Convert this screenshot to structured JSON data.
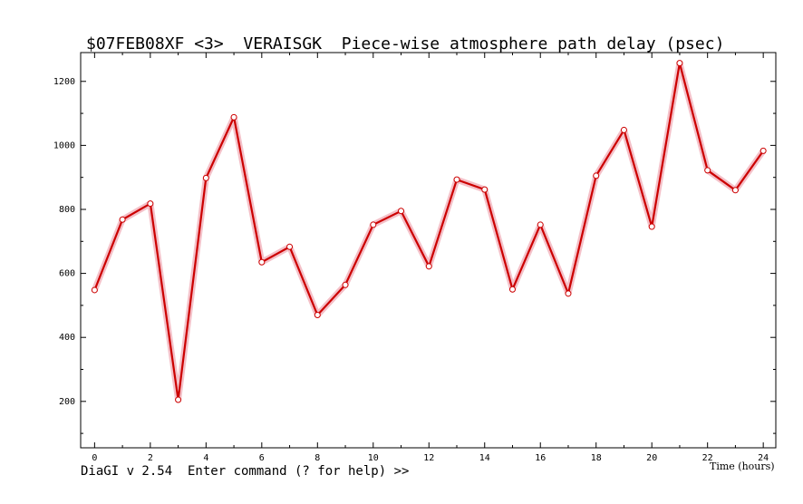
{
  "chart_data": {
    "type": "line",
    "title": "$07FEB08XF <3>  VERAISGK  Piece-wise atmosphere path delay (psec)",
    "xlabel": "Time (hours)",
    "ylabel": "",
    "xlim": [
      -0.5,
      24.45
    ],
    "ylim": [
      55,
      1290
    ],
    "x_ticks": [
      0,
      2,
      4,
      6,
      8,
      10,
      12,
      14,
      16,
      18,
      20,
      22,
      24
    ],
    "y_ticks": [
      200,
      400,
      600,
      800,
      1000,
      1200
    ],
    "grid": false,
    "series": [
      {
        "x": [
          0,
          1,
          2,
          3,
          4,
          5,
          6,
          7,
          8,
          9,
          10,
          11,
          12,
          13,
          14,
          15,
          16,
          17,
          18,
          19,
          20,
          21,
          22,
          23,
          24
        ],
        "values": [
          548,
          768,
          818,
          205,
          898,
          1088,
          635,
          683,
          470,
          564,
          752,
          795,
          622,
          893,
          862,
          550,
          752,
          537,
          905,
          1048,
          746,
          1257,
          922,
          860,
          983
        ],
        "color": "#cc0000",
        "band_color": "#f4c0c8"
      }
    ]
  },
  "footer": {
    "command_line": "DiaGI v 2.54  Enter command (? for help) >>"
  }
}
